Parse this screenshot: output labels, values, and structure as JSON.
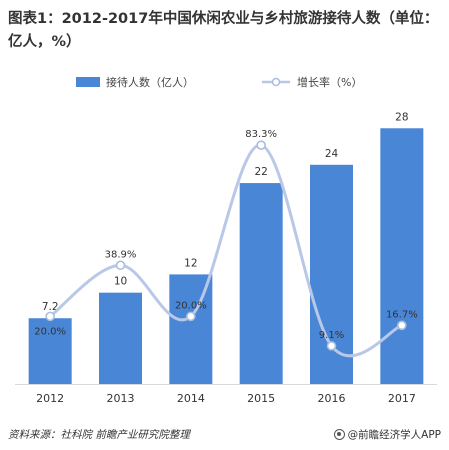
{
  "title": "图表1：2012-2017年中国休闲农业与乡村旅游接待人数（单位：亿人，%）",
  "legend": {
    "bar_label": "接待人数（亿人）",
    "line_label": "增长率（%）"
  },
  "footer": {
    "source": "资料来源：社科院 前瞻产业研究院整理",
    "brand": "@前瞻经济学人APP"
  },
  "colors": {
    "bar": "#4a86d6",
    "line": "#b8c8e6",
    "marker_fill": "#ffffff",
    "marker_stroke": "#a7bedf"
  },
  "chart_data": {
    "type": "bar",
    "categories": [
      "2012",
      "2013",
      "2014",
      "2015",
      "2016",
      "2017"
    ],
    "series": [
      {
        "name": "接待人数（亿人）",
        "type": "bar",
        "axis": "left",
        "values": [
          7.2,
          10,
          12,
          22,
          24,
          28
        ],
        "value_labels": [
          "7.2",
          "10",
          "12",
          "22",
          "24",
          "28"
        ]
      },
      {
        "name": "增长率（%）",
        "type": "line",
        "smooth": true,
        "axis": "right",
        "values": [
          20.0,
          38.9,
          20.0,
          83.3,
          9.1,
          16.7
        ],
        "value_labels": [
          "20.0%",
          "38.9%",
          "20.0%",
          "83.3%",
          "9.1%",
          "16.7%"
        ]
      }
    ],
    "bar_axis_range": [
      0,
      30
    ],
    "line_axis_range": [
      -5,
      100
    ],
    "axes_visible": false,
    "grid": false,
    "legend_position": "top-center"
  }
}
